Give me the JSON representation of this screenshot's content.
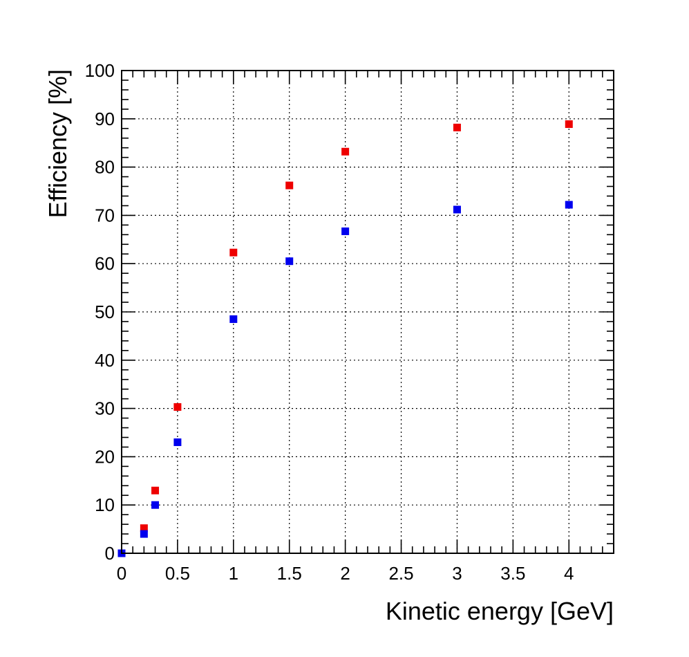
{
  "chart_data": {
    "type": "scatter",
    "xlabel": "Kinetic energy [GeV]",
    "ylabel": "Efficiency [%]",
    "xlim": [
      0,
      4.4
    ],
    "ylim": [
      0,
      100
    ],
    "x_ticks": [
      0,
      0.5,
      1,
      1.5,
      2,
      2.5,
      3,
      3.5,
      4
    ],
    "x_tick_labels": [
      "0",
      "0.5",
      "1",
      "1.5",
      "2",
      "2.5",
      "3",
      "3.5",
      "4"
    ],
    "y_ticks": [
      0,
      10,
      20,
      30,
      40,
      50,
      60,
      70,
      80,
      90,
      100
    ],
    "y_tick_labels": [
      "0",
      "10",
      "20",
      "30",
      "40",
      "50",
      "60",
      "70",
      "80",
      "90",
      "100"
    ],
    "grid": true,
    "series": [
      {
        "color": "#ee0000",
        "marker": "square",
        "x": [
          0,
          0.2,
          0.3,
          0.5,
          1,
          1.5,
          2,
          3,
          4
        ],
        "y": [
          0,
          5.2,
          13,
          30.3,
          62.3,
          76.2,
          83.2,
          88.2,
          88.9
        ]
      },
      {
        "color": "#0000ee",
        "marker": "square",
        "x": [
          0,
          0.2,
          0.3,
          0.5,
          1,
          1.5,
          2,
          3,
          4
        ],
        "y": [
          0,
          4,
          10,
          23,
          48.5,
          60.5,
          66.7,
          71.2,
          72.2
        ]
      }
    ]
  }
}
